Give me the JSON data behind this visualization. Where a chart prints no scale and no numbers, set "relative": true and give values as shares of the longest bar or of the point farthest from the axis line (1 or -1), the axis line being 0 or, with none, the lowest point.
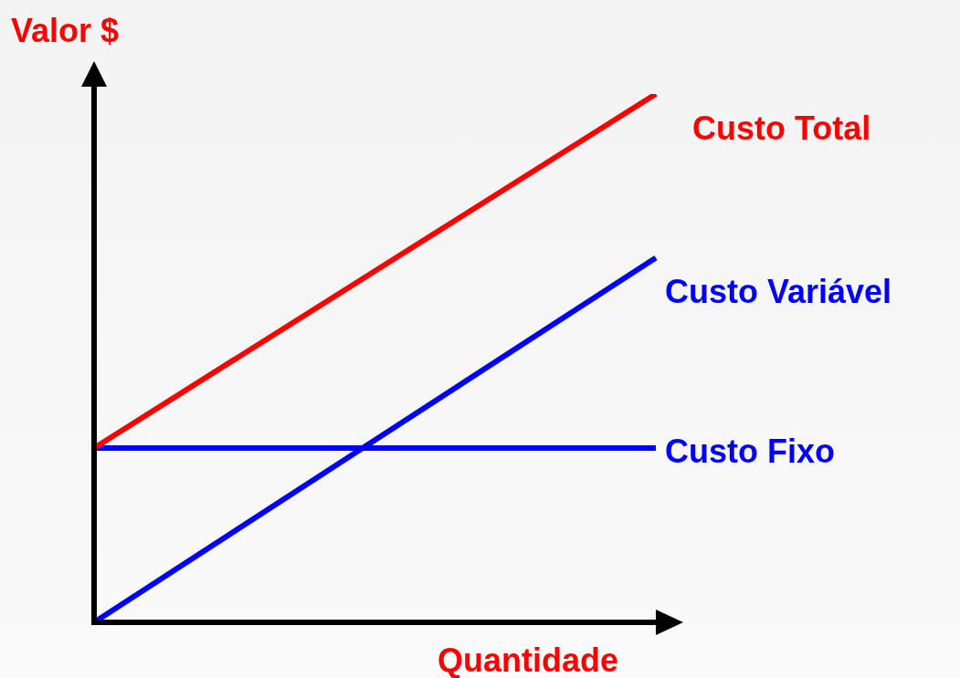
{
  "chart_data": {
    "type": "line",
    "relative": true,
    "xlabel": "Quantidade",
    "ylabel": "Valor $",
    "categories": [
      null,
      null
    ],
    "legend": false,
    "marker": "none",
    "line_style": "solid",
    "series": [
      {
        "name": "Custo Total",
        "color": "#ff0000",
        "values": [
          0.33,
          1
        ]
      },
      {
        "name": "Custo Variável",
        "color": "#0000ff",
        "values": [
          0,
          0.69
        ]
      },
      {
        "name": "Custo Fixo",
        "color": "#0000ff",
        "values": [
          0.33,
          0.33
        ]
      }
    ]
  }
}
